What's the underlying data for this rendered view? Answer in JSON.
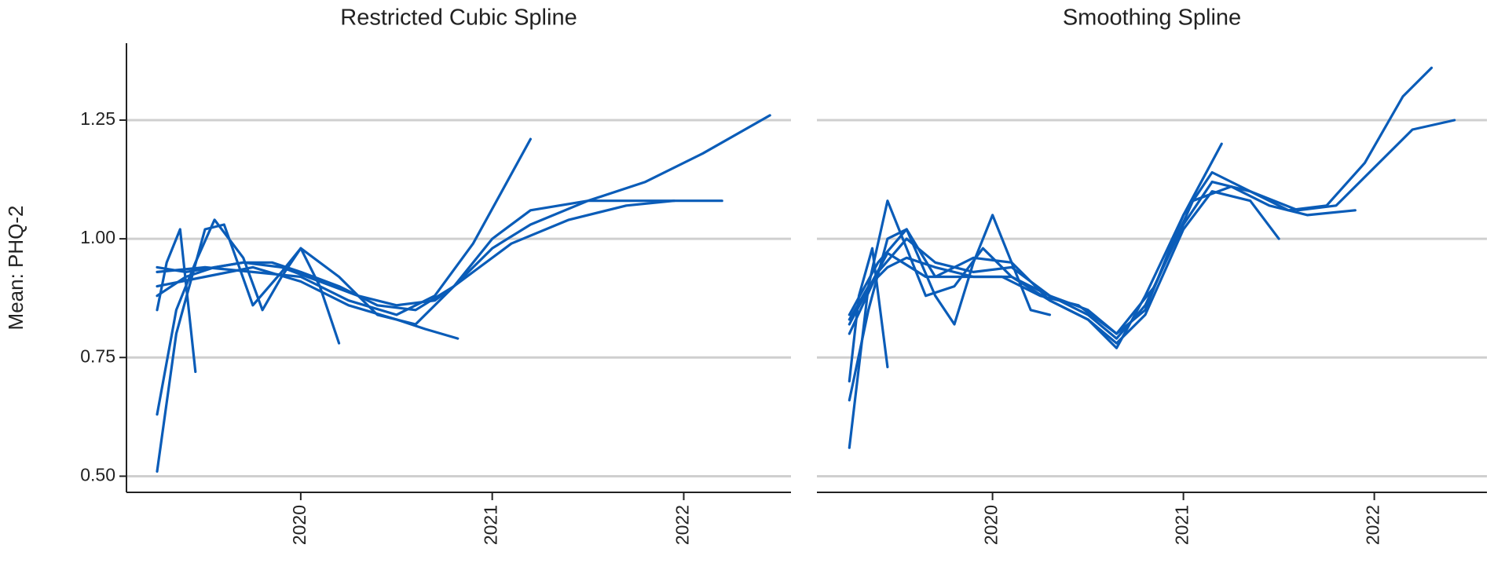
{
  "chart_data": [
    {
      "type": "line",
      "title": "Restricted Cubic Spline",
      "y_label": "Mean: PHQ-2",
      "color": "#0a5cb8",
      "grid": true,
      "xlim": [
        2019.09,
        2022.56
      ],
      "ylim": [
        0.466,
        1.412
      ],
      "xticks": [
        2020,
        2021,
        2022
      ],
      "yticks": [
        {
          "value": 0.5,
          "label": "0.50"
        },
        {
          "value": 0.75,
          "label": "0.75"
        },
        {
          "value": 1,
          "label": "1.00"
        },
        {
          "value": 1.25,
          "label": "1.25"
        }
      ],
      "series": [
        {
          "x": [
            2019.25,
            2019.4,
            2019.55,
            2019.7,
            2019.85,
            2020.0,
            2020.2,
            2020.4,
            2020.6,
            2020.8,
            2021.0,
            2021.2,
            2021.5,
            2021.8,
            2022.1,
            2022.45
          ],
          "values": [
            0.88,
            0.92,
            0.94,
            0.95,
            0.95,
            0.93,
            0.9,
            0.86,
            0.85,
            0.9,
            0.98,
            1.03,
            1.08,
            1.12,
            1.18,
            1.26
          ]
        },
        {
          "x": [
            2019.25,
            2019.35,
            2019.5,
            2019.6,
            2019.75,
            2019.9,
            2020.0,
            2020.2,
            2020.4,
            2020.6,
            2020.8,
            2021.0,
            2021.2,
            2021.5,
            2021.8,
            2022.2
          ],
          "values": [
            0.51,
            0.8,
            1.02,
            1.03,
            0.86,
            0.93,
            0.98,
            0.92,
            0.84,
            0.82,
            0.9,
            1.0,
            1.06,
            1.08,
            1.08,
            1.08
          ]
        },
        {
          "x": [
            2019.25,
            2019.35,
            2019.45,
            2019.55,
            2019.7,
            2019.8,
            2019.9,
            2020.0,
            2020.1,
            2020.2
          ],
          "values": [
            0.63,
            0.85,
            0.95,
            1.04,
            0.96,
            0.85,
            0.92,
            0.98,
            0.9,
            0.78
          ]
        },
        {
          "x": [
            2019.25,
            2019.3,
            2019.37,
            2019.45
          ],
          "values": [
            0.85,
            0.95,
            1.02,
            0.72
          ]
        },
        {
          "x": [
            2019.25,
            2019.5,
            2019.75,
            2020.0,
            2020.25,
            2020.5,
            2020.7,
            2020.9,
            2021.05,
            2021.2
          ],
          "values": [
            0.93,
            0.94,
            0.93,
            0.92,
            0.87,
            0.84,
            0.88,
            0.99,
            1.1,
            1.21
          ]
        },
        {
          "x": [
            2019.25,
            2019.5,
            2019.75,
            2020.0,
            2020.25,
            2020.5,
            2020.65,
            2020.82
          ],
          "values": [
            0.9,
            0.92,
            0.94,
            0.91,
            0.86,
            0.83,
            0.81,
            0.79
          ]
        },
        {
          "x": [
            2019.25,
            2019.4,
            2019.55,
            2019.7,
            2019.9,
            2020.1,
            2020.3,
            2020.5,
            2020.7,
            2020.9,
            2021.1,
            2021.4,
            2021.7,
            2021.95
          ],
          "values": [
            0.94,
            0.93,
            0.94,
            0.95,
            0.94,
            0.91,
            0.88,
            0.86,
            0.87,
            0.93,
            0.99,
            1.04,
            1.07,
            1.08
          ]
        }
      ]
    },
    {
      "type": "line",
      "title": "Smoothing Spline",
      "color": "#0a5cb8",
      "grid": true,
      "xlim": [
        2019.08,
        2022.59
      ],
      "ylim": [
        0.466,
        1.412
      ],
      "xticks": [
        2020,
        2021,
        2022
      ],
      "yticks": [
        0.5,
        0.75,
        1,
        1.25
      ],
      "series": [
        {
          "x": [
            2019.25,
            2019.35,
            2019.45,
            2019.55,
            2019.7,
            2019.9,
            2020.1,
            2020.3,
            2020.5,
            2020.65,
            2020.8,
            2021.0,
            2021.15,
            2021.35,
            2021.6,
            2021.8,
            2022.0,
            2022.2,
            2022.42
          ],
          "values": [
            0.83,
            0.9,
            0.94,
            0.96,
            0.94,
            0.92,
            0.92,
            0.88,
            0.84,
            0.79,
            0.86,
            1.03,
            1.12,
            1.1,
            1.06,
            1.07,
            1.15,
            1.23,
            1.25
          ]
        },
        {
          "x": [
            2019.25,
            2019.35,
            2019.45,
            2019.55,
            2019.65,
            2019.8,
            2019.95,
            2020.1,
            2020.3,
            2020.5,
            2020.65,
            2020.8,
            2021.0,
            2021.15,
            2021.35,
            2021.55,
            2021.75,
            2021.95,
            2022.15,
            2022.3
          ],
          "values": [
            0.56,
            0.9,
            1.08,
            0.98,
            0.88,
            0.9,
            0.98,
            0.92,
            0.87,
            0.83,
            0.77,
            0.88,
            1.05,
            1.14,
            1.1,
            1.06,
            1.07,
            1.16,
            1.3,
            1.36
          ]
        },
        {
          "x": [
            2019.25,
            2019.3,
            2019.37,
            2019.45
          ],
          "values": [
            0.7,
            0.88,
            0.98,
            0.73
          ]
        },
        {
          "x": [
            2019.25,
            2019.35,
            2019.45,
            2019.55,
            2019.7,
            2019.8,
            2019.9,
            2020.0,
            2020.1,
            2020.2,
            2020.3
          ],
          "values": [
            0.66,
            0.85,
            1.0,
            1.02,
            0.88,
            0.82,
            0.95,
            1.05,
            0.95,
            0.85,
            0.84
          ]
        },
        {
          "x": [
            2019.25,
            2019.4,
            2019.55,
            2019.7,
            2019.9,
            2020.1,
            2020.3,
            2020.5,
            2020.65,
            2020.8,
            2021.0,
            2021.2
          ],
          "values": [
            0.8,
            0.93,
            1.0,
            0.95,
            0.93,
            0.94,
            0.88,
            0.85,
            0.8,
            0.85,
            1.05,
            1.2
          ]
        },
        {
          "x": [
            2019.25,
            2019.4,
            2019.55,
            2019.7,
            2019.9,
            2020.1,
            2020.3,
            2020.5,
            2020.65,
            2020.8,
            2021.0,
            2021.15,
            2021.35,
            2021.5
          ],
          "values": [
            0.84,
            0.95,
            1.02,
            0.92,
            0.96,
            0.95,
            0.87,
            0.83,
            0.78,
            0.84,
            1.02,
            1.1,
            1.08,
            1.0
          ]
        },
        {
          "x": [
            2019.25,
            2019.45,
            2019.65,
            2019.85,
            2020.05,
            2020.25,
            2020.45,
            2020.65,
            2020.85,
            2021.05,
            2021.25,
            2021.45,
            2021.65,
            2021.9
          ],
          "values": [
            0.82,
            0.97,
            0.92,
            0.92,
            0.92,
            0.88,
            0.86,
            0.8,
            0.9,
            1.08,
            1.11,
            1.07,
            1.05,
            1.06
          ]
        }
      ]
    }
  ]
}
